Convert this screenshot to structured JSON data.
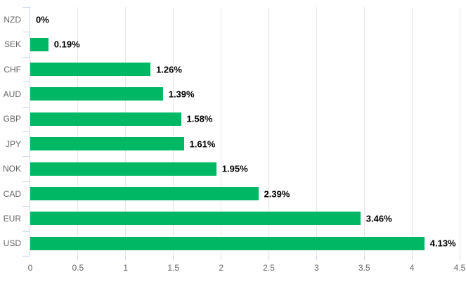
{
  "chart_data": {
    "type": "bar",
    "orientation": "horizontal",
    "title": "",
    "categories": [
      "NZD",
      "SEK",
      "CHF",
      "AUD",
      "GBP",
      "JPY",
      "NOK",
      "CAD",
      "EUR",
      "USD"
    ],
    "values": [
      0,
      0.19,
      1.26,
      1.39,
      1.58,
      1.61,
      1.95,
      2.39,
      3.46,
      4.13
    ],
    "data_labels": [
      "0%",
      "0.19%",
      "1.26%",
      "1.39%",
      "1.58%",
      "1.61%",
      "1.95%",
      "2.39%",
      "3.46%",
      "4.13%"
    ],
    "xlim": [
      0,
      4.5
    ],
    "x_ticks": [
      0,
      0.5,
      1,
      1.5,
      2,
      2.5,
      3,
      3.5,
      4,
      4.5
    ],
    "x_tick_labels": [
      "0",
      "0.5",
      "1",
      "1.5",
      "2",
      "2.5",
      "3",
      "3.5",
      "4",
      "4.5"
    ],
    "grid": true,
    "legend_position": "none",
    "colors": {
      "bar": "#00b863",
      "grid": "#e6e6e6",
      "axis": "#ccd6eb",
      "axis_label": "#666666",
      "data_label": "#000000",
      "background": "#ffffff"
    }
  }
}
